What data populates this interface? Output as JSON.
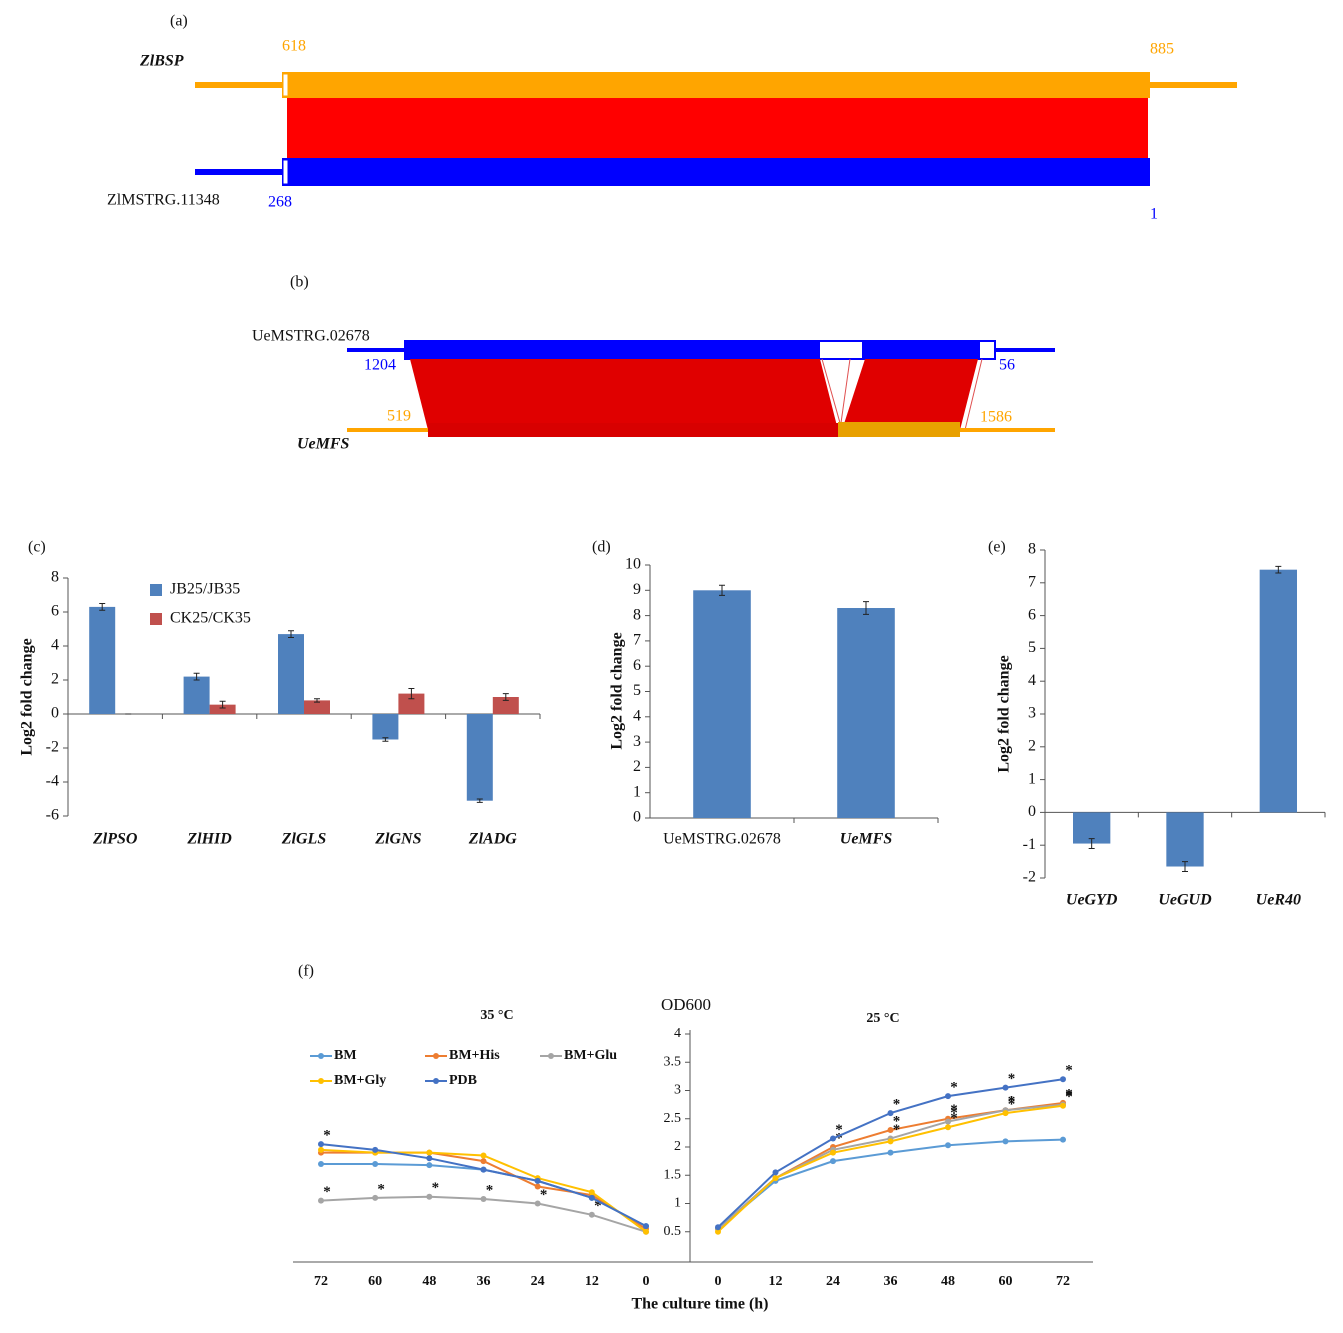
{
  "diagram_a": {
    "label": "(a)",
    "top_name": "ZlBSP",
    "top_start": 618,
    "top_end": 885,
    "bottom_name": "ZlMSTRG.11348",
    "bottom_start": 268,
    "bottom_end": 1
  },
  "diagram_b": {
    "label": "(b)",
    "top_name": "UeMSTRG.02678",
    "top_start": 1204,
    "top_end": 56,
    "bottom_name": "UeMFS",
    "bottom_start": 519,
    "bottom_end": 1586
  },
  "chart_data": [
    {
      "type": "bar",
      "label": "(c)",
      "ylabel": "Log2 fold change",
      "categories": [
        "ZlPSO",
        "ZlHID",
        "ZlGLS",
        "ZlGNS",
        "ZlADG"
      ],
      "series": [
        {
          "name": "JB25/JB35",
          "color": "#4f81bd",
          "values": [
            6.3,
            2.2,
            4.7,
            -1.5,
            -5.1
          ],
          "errors": [
            0.2,
            0.2,
            0.2,
            0.1,
            0.1
          ]
        },
        {
          "name": "CK25/CK35",
          "color": "#c0504d",
          "values": [
            0,
            0.55,
            0.8,
            1.2,
            1.0
          ],
          "errors": [
            0,
            0.2,
            0.1,
            0.3,
            0.2
          ]
        }
      ],
      "ylim": [
        -6,
        8
      ],
      "yticks": [
        -6,
        -4,
        -2,
        0,
        2,
        4,
        6,
        8
      ]
    },
    {
      "type": "bar",
      "label": "(d)",
      "ylabel": "Log2 fold change",
      "categories": [
        "UeMSTRG.02678",
        "UeMFS"
      ],
      "series": [
        {
          "color": "#4f81bd",
          "values": [
            9.0,
            8.3
          ],
          "errors": [
            0.2,
            0.25
          ]
        }
      ],
      "ylim": [
        0,
        10
      ],
      "yticks": [
        0,
        1,
        2,
        3,
        4,
        5,
        6,
        7,
        8,
        9,
        10
      ]
    },
    {
      "type": "bar",
      "label": "(e)",
      "ylabel": "Log2 fold change",
      "categories": [
        "UeGYD",
        "UeGUD",
        "UeR40"
      ],
      "series": [
        {
          "color": "#4f81bd",
          "values": [
            -0.95,
            -1.65,
            7.4
          ],
          "errors": [
            0.15,
            0.15,
            0.1
          ]
        }
      ],
      "ylim": [
        -2,
        8
      ],
      "yticks": [
        -2,
        -1,
        0,
        1,
        2,
        3,
        4,
        5,
        6,
        7,
        8
      ]
    },
    {
      "type": "line",
      "label": "(f)",
      "title": "OD600",
      "xlabel": "The culture time (h)",
      "ylim": [
        0,
        4
      ],
      "yticks": [
        0.5,
        1,
        1.5,
        2,
        2.5,
        3,
        3.5,
        4
      ],
      "significance_mark": "*",
      "panels": [
        {
          "title": "35 °C",
          "xlim": [
            72,
            0
          ],
          "x": [
            72,
            60,
            48,
            36,
            24,
            12,
            0
          ]
        },
        {
          "title": "25 °C",
          "xlim": [
            0,
            72
          ],
          "x": [
            0,
            12,
            24,
            36,
            48,
            60,
            72
          ]
        }
      ],
      "series": [
        {
          "name": "BM",
          "color": "#5b9bd5",
          "values": [
            [
              1.7,
              1.7,
              1.68,
              1.6,
              1.4,
              1.1,
              0.6
            ],
            [
              0.55,
              1.4,
              1.75,
              1.9,
              2.03,
              2.1,
              2.13
            ]
          ],
          "starred": [
            [
              false,
              false,
              false,
              false,
              false,
              false,
              false
            ],
            [
              false,
              false,
              false,
              false,
              false,
              false,
              false
            ]
          ]
        },
        {
          "name": "BM+His",
          "color": "#ed7d31",
          "values": [
            [
              1.9,
              1.9,
              1.9,
              1.75,
              1.3,
              1.15,
              0.55
            ],
            [
              0.55,
              1.45,
              2.0,
              2.3,
              2.5,
              2.65,
              2.78
            ]
          ],
          "starred": [
            [
              false,
              false,
              false,
              false,
              false,
              false,
              false
            ],
            [
              false,
              false,
              true,
              true,
              true,
              true,
              true
            ]
          ]
        },
        {
          "name": "BM+Glu",
          "color": "#a5a5a5",
          "values": [
            [
              1.05,
              1.1,
              1.12,
              1.08,
              1.0,
              0.8,
              0.5
            ],
            [
              0.55,
              1.45,
              1.95,
              2.15,
              2.45,
              2.65,
              2.75
            ]
          ],
          "starred": [
            [
              true,
              true,
              true,
              true,
              true,
              true,
              false
            ],
            [
              false,
              false,
              false,
              true,
              true,
              true,
              true
            ]
          ]
        },
        {
          "name": "BM+Gly",
          "color": "#ffc000",
          "values": [
            [
              1.95,
              1.9,
              1.9,
              1.85,
              1.45,
              1.2,
              0.5
            ],
            [
              0.5,
              1.45,
              1.9,
              2.1,
              2.35,
              2.6,
              2.73
            ]
          ],
          "starred": [
            [
              false,
              false,
              false,
              false,
              false,
              false,
              false
            ],
            [
              false,
              false,
              false,
              false,
              true,
              true,
              true
            ]
          ]
        },
        {
          "name": "PDB",
          "color": "#4472c4",
          "values": [
            [
              2.05,
              1.95,
              1.8,
              1.6,
              1.4,
              1.1,
              0.6
            ],
            [
              0.58,
              1.55,
              2.15,
              2.6,
              2.9,
              3.05,
              3.2
            ]
          ],
          "starred": [
            [
              true,
              false,
              false,
              false,
              false,
              false,
              false
            ],
            [
              false,
              false,
              true,
              true,
              true,
              true,
              true
            ]
          ]
        }
      ]
    }
  ]
}
